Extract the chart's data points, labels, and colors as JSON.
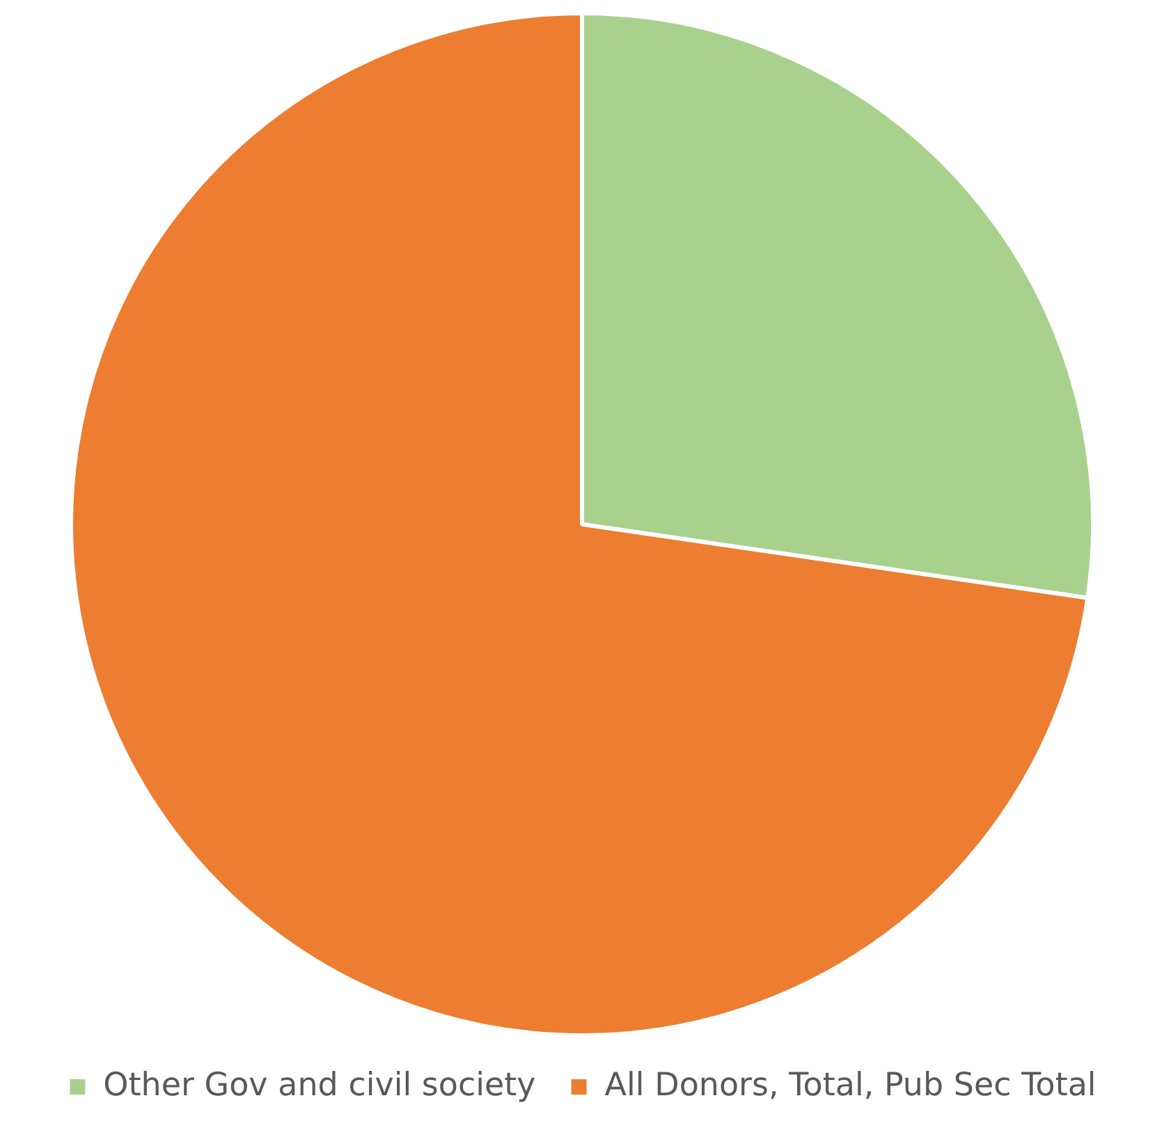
{
  "chart_data": {
    "type": "pie",
    "categories": [
      "Other Gov and civil society",
      "All Donors, Total, Pub Sec Total"
    ],
    "values": [
      27.3,
      72.7
    ],
    "colors": [
      "#a9d18e",
      "#ed7d31"
    ],
    "legend": "bottom"
  }
}
